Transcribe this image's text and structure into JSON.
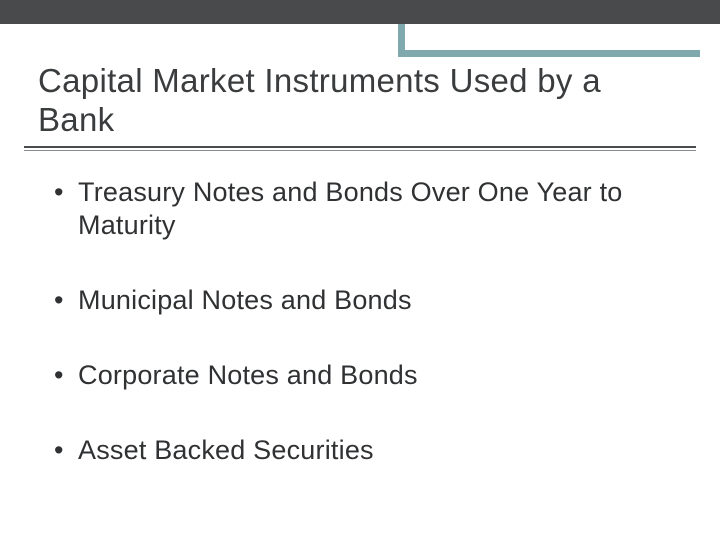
{
  "colors": {
    "topbar": "#484a4c",
    "accent": "#7fa9ad",
    "title_text": "#3a3c3e",
    "body_text": "#2f3133",
    "rule_thick": "#4a4c4e",
    "rule_thin": "#8a8c8e",
    "background": "#ffffff"
  },
  "title": "Capital Market Instruments Used by a Bank",
  "bullets": [
    "Treasury Notes and Bonds Over One Year to Maturity",
    "Municipal Notes and Bonds",
    "Corporate Notes and Bonds",
    "Asset Backed Securities"
  ]
}
